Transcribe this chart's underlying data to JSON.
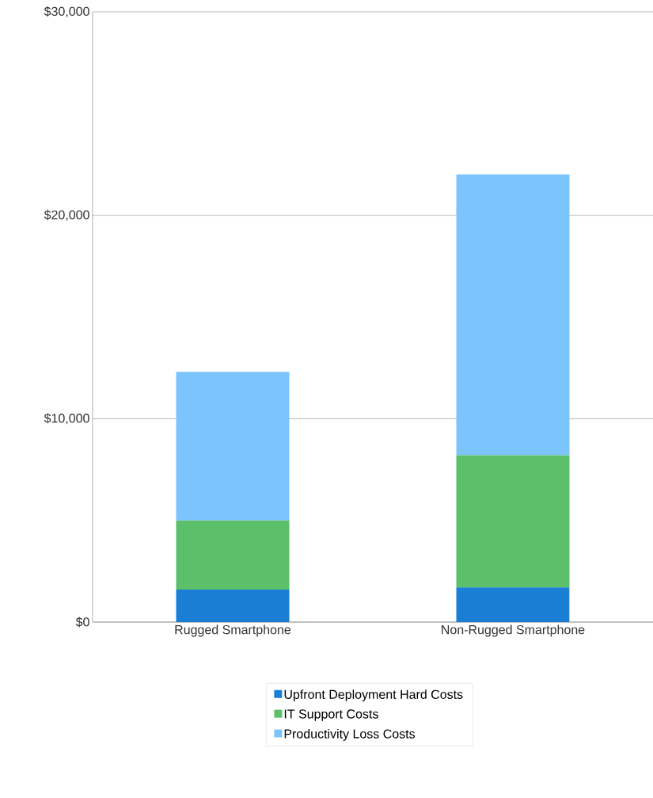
{
  "chart_data": {
    "type": "bar",
    "stacked": true,
    "categories": [
      "Rugged Smartphone",
      "Non-Rugged Smartphone"
    ],
    "series": [
      {
        "name": "Upfront Deployment Hard Costs",
        "color": "#1a7fd4",
        "values": [
          1600,
          1700
        ]
      },
      {
        "name": "IT Support Costs",
        "color": "#5cbf6a",
        "values": [
          3400,
          6500
        ]
      },
      {
        "name": "Productivity Loss Costs",
        "color": "#7cc4fc",
        "values": [
          7300,
          13800
        ]
      }
    ],
    "ylim": [
      0,
      30000
    ],
    "yticks": [
      {
        "value": 0,
        "label": "$0"
      },
      {
        "value": 10000,
        "label": "$10,000"
      },
      {
        "value": 20000,
        "label": "$20,000"
      },
      {
        "value": 30000,
        "label": "$30,000"
      }
    ],
    "grid": "y",
    "legend": "bottom"
  }
}
